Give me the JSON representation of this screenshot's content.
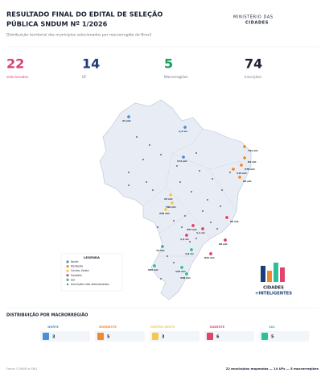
{
  "header": {
    "title_line1": "RESULTADO FINAL DO EDITAL DE SELEÇÃO",
    "title_line2": "PÚBLICA SNDUM Nº 1/2026",
    "subtitle": "Distribuição territorial dos municípios selecionados por macrorregião do Brasil",
    "logo_line1": "MINISTÉRIO DAS",
    "logo_line2": "CIDADES"
  },
  "stats": [
    {
      "value": "22",
      "label": "selecionados",
      "color": "#d6416b"
    },
    {
      "value": "14",
      "label": "UF",
      "color": "#1c3d7a"
    },
    {
      "value": "5",
      "label": "Macrorregiões",
      "color": "#1a9c5a"
    },
    {
      "value": "74",
      "label": "Inscrições",
      "color": "#1a2233"
    }
  ],
  "regions": [
    {
      "name": "Norte",
      "color": "#4a90d9"
    },
    {
      "name": "Nordeste",
      "color": "#f08a30"
    },
    {
      "name": "Centro-Oeste",
      "color": "#f2c94c"
    },
    {
      "name": "Sudeste",
      "color": "#e0446a"
    },
    {
      "name": "Sul",
      "color": "#2dbf9a"
    }
  ],
  "legend": {
    "title": "LEGENDA",
    "not_selected": "Inscrições não selecionadas"
  },
  "markers": [
    {
      "label": "21 mil",
      "region": 0
    },
    {
      "label": "1,4 mi",
      "region": 0
    },
    {
      "label": "171 mil",
      "region": 0
    },
    {
      "label": "751 mil",
      "region": 1
    },
    {
      "label": "82 mil",
      "region": 1
    },
    {
      "label": "378 mil",
      "region": 1
    },
    {
      "label": "113 mil",
      "region": 1
    },
    {
      "label": "96 mil",
      "region": 1
    },
    {
      "label": "24 mil",
      "region": 2
    },
    {
      "label": "399 mil",
      "region": 2
    },
    {
      "label": "226 mil",
      "region": 2
    },
    {
      "label": "457 mil",
      "region": 3
    },
    {
      "label": "95 mil",
      "region": 3
    },
    {
      "label": "1,2 mi",
      "region": 3
    },
    {
      "label": "1,1 mi",
      "region": 3
    },
    {
      "label": "90 mil",
      "region": 3
    },
    {
      "label": "831 mil",
      "region": 3
    },
    {
      "label": "73 mil",
      "region": 4
    },
    {
      "label": "1,8 mi",
      "region": 4
    },
    {
      "label": "966 mil",
      "region": 4
    },
    {
      "label": "123 mil",
      "region": 4
    },
    {
      "label": "348 mil",
      "region": 4
    }
  ],
  "distribution": {
    "title": "DISTRIBUIÇÃO POR MACRORREGIÃO",
    "cards": [
      {
        "label": "NORTE",
        "count": 3
      },
      {
        "label": "NORDESTE",
        "count": 5
      },
      {
        "label": "CENTRO-OESTE",
        "count": 3
      },
      {
        "label": "SUDESTE",
        "count": 6
      },
      {
        "label": "SUL",
        "count": 5
      }
    ]
  },
  "brand": {
    "line1": "CIDADES",
    "line2": "+INTELIGENTES"
  },
  "footer": {
    "source": "Fonte: CGMUR e SNQ",
    "summary": "22 municípios mapeados — 14 UFs — 5 macrorregiões"
  }
}
